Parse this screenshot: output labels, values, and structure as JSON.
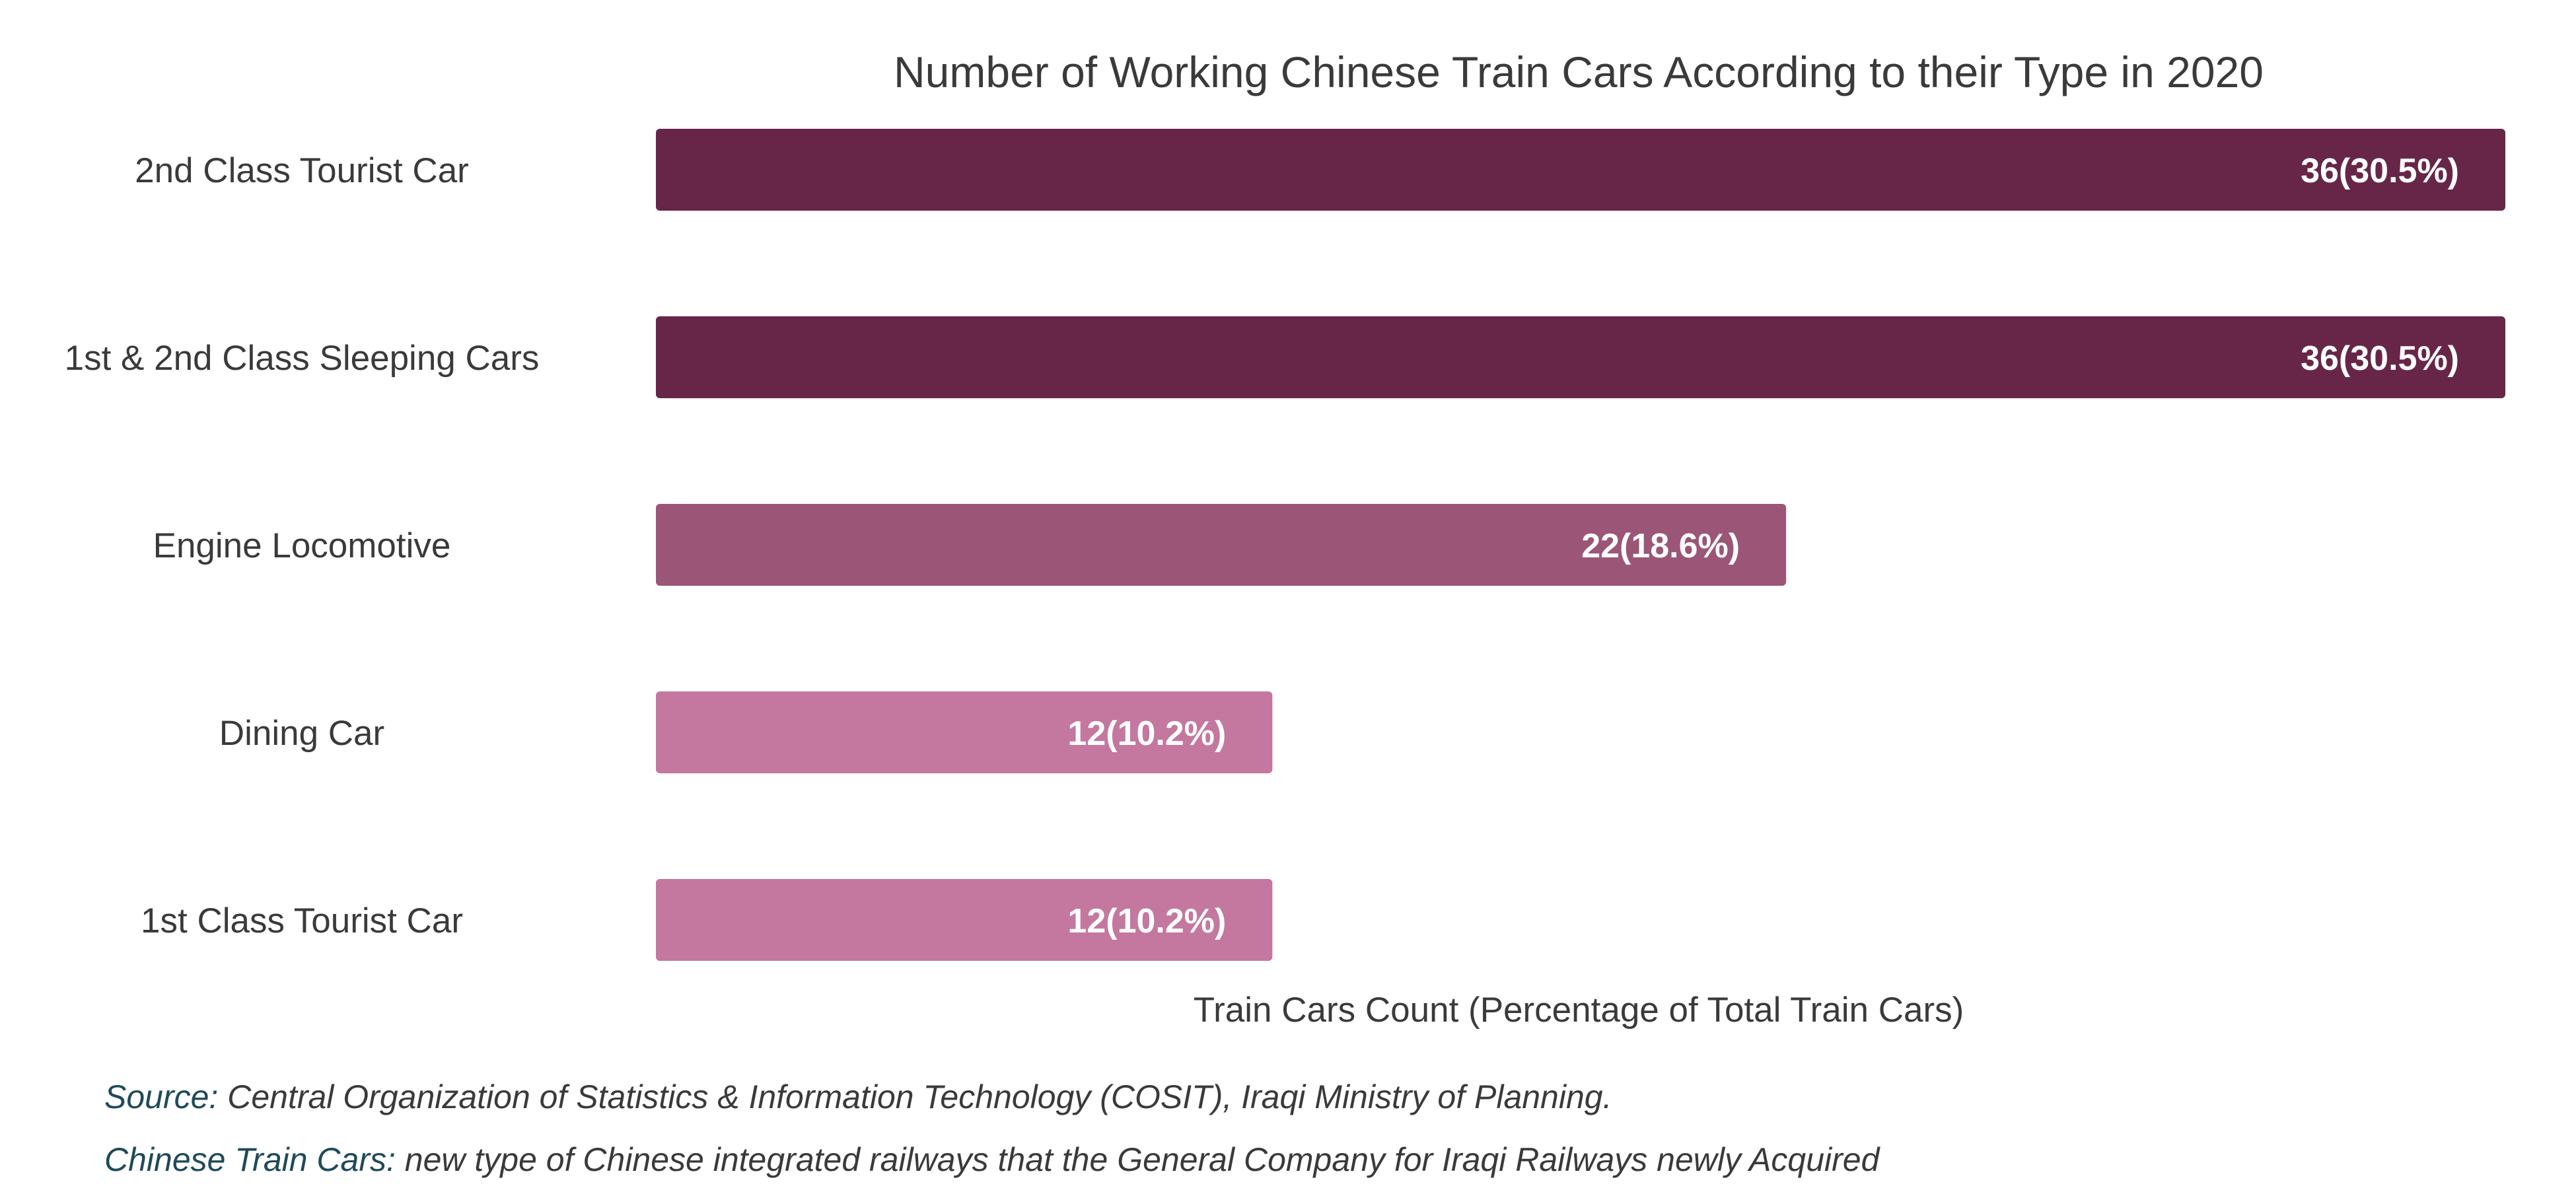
{
  "chart_data": {
    "type": "bar",
    "orientation": "horizontal",
    "title": "Number of Working Chinese Train Cars According to their Type in 2020",
    "xlabel": "Train Cars Count (Percentage of Total Train Cars)",
    "ylabel": "",
    "categories": [
      "2nd Class Tourist Car",
      "1st & 2nd Class Sleeping Cars",
      "Engine Locomotive",
      "Dining Car",
      "1st Class Tourist Car"
    ],
    "values": [
      36,
      36,
      22,
      12,
      12
    ],
    "data_labels": [
      "36(30.5%)",
      "36(30.5%)",
      "22(18.6%)",
      "12(10.2%)",
      "12(10.2%)"
    ],
    "bar_colors": [
      "#672648",
      "#672648",
      "#9b5577",
      "#c4779f",
      "#c4779f"
    ],
    "xlim": [
      0,
      36
    ],
    "grid": false,
    "legend": "none"
  },
  "colors": {
    "text": "#3a3a3a",
    "label_on_bar": "#ffffff",
    "footnote_key": "#1f4a5a"
  },
  "footnotes": {
    "source_key": "Source:",
    "source_text": " Central Organization of Statistics & Information Technology (COSIT), Iraqi Ministry of Planning.",
    "definition_key": "Chinese Train Cars:",
    "definition_text": " new type of Chinese integrated railways that the General Company for Iraqi Railways newly Acquired"
  }
}
